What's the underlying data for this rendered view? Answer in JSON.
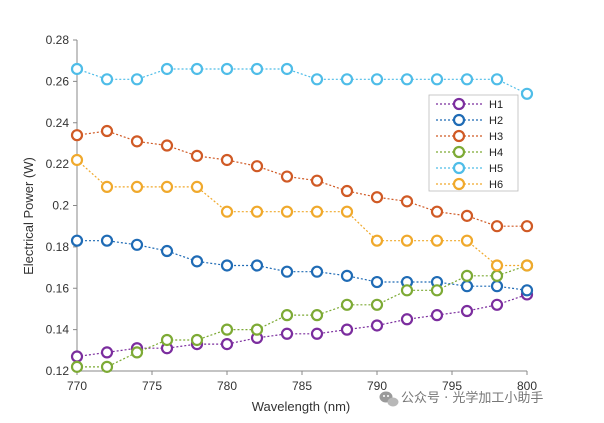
{
  "chart_data": {
    "type": "line",
    "title": "",
    "xlabel": "Wavelength (nm)",
    "ylabel": "Electrical Power (W)",
    "xlim": [
      770,
      800
    ],
    "ylim": [
      0.12,
      0.28
    ],
    "xticks": [
      "770",
      "775",
      "780",
      "785",
      "790",
      "795",
      "800"
    ],
    "yticks": [
      "0.12",
      "0.14",
      "0.16",
      "0.18",
      "0.2",
      "0.22",
      "0.24",
      "0.26",
      "0.28"
    ],
    "x": [
      770,
      772,
      774,
      776,
      778,
      780,
      782,
      784,
      786,
      788,
      790,
      792,
      794,
      796,
      798,
      800
    ],
    "series": [
      {
        "name": "H1",
        "color": "#7B2D9E",
        "values": [
          0.127,
          0.129,
          0.131,
          0.131,
          0.133,
          0.133,
          0.136,
          0.138,
          0.138,
          0.14,
          0.142,
          0.145,
          0.147,
          0.149,
          0.152,
          0.157
        ]
      },
      {
        "name": "H2",
        "color": "#1F6BB5",
        "values": [
          0.183,
          0.183,
          0.181,
          0.178,
          0.173,
          0.171,
          0.171,
          0.168,
          0.168,
          0.166,
          0.163,
          0.163,
          0.163,
          0.161,
          0.161,
          0.159
        ]
      },
      {
        "name": "H3",
        "color": "#D05A25",
        "values": [
          0.234,
          0.236,
          0.231,
          0.229,
          0.224,
          0.222,
          0.219,
          0.214,
          0.212,
          0.207,
          0.204,
          0.202,
          0.197,
          0.195,
          0.19,
          0.19
        ]
      },
      {
        "name": "H4",
        "color": "#7DAA35",
        "values": [
          0.122,
          0.122,
          0.129,
          0.135,
          0.135,
          0.14,
          0.14,
          0.147,
          0.147,
          0.152,
          0.152,
          0.159,
          0.159,
          0.166,
          0.166,
          0.171
        ]
      },
      {
        "name": "H5",
        "color": "#4FBDE8",
        "values": [
          0.266,
          0.261,
          0.261,
          0.266,
          0.266,
          0.266,
          0.266,
          0.266,
          0.261,
          0.261,
          0.261,
          0.261,
          0.261,
          0.261,
          0.261,
          0.254
        ]
      },
      {
        "name": "H6",
        "color": "#F0A92C",
        "values": [
          0.222,
          0.209,
          0.209,
          0.209,
          0.209,
          0.197,
          0.197,
          0.197,
          0.197,
          0.197,
          0.183,
          0.183,
          0.183,
          0.183,
          0.171,
          0.171
        ]
      }
    ],
    "legend_position": "right"
  },
  "watermark": {
    "text": "公众号 · 光学加工小助手",
    "icon": "wechat-icon"
  }
}
